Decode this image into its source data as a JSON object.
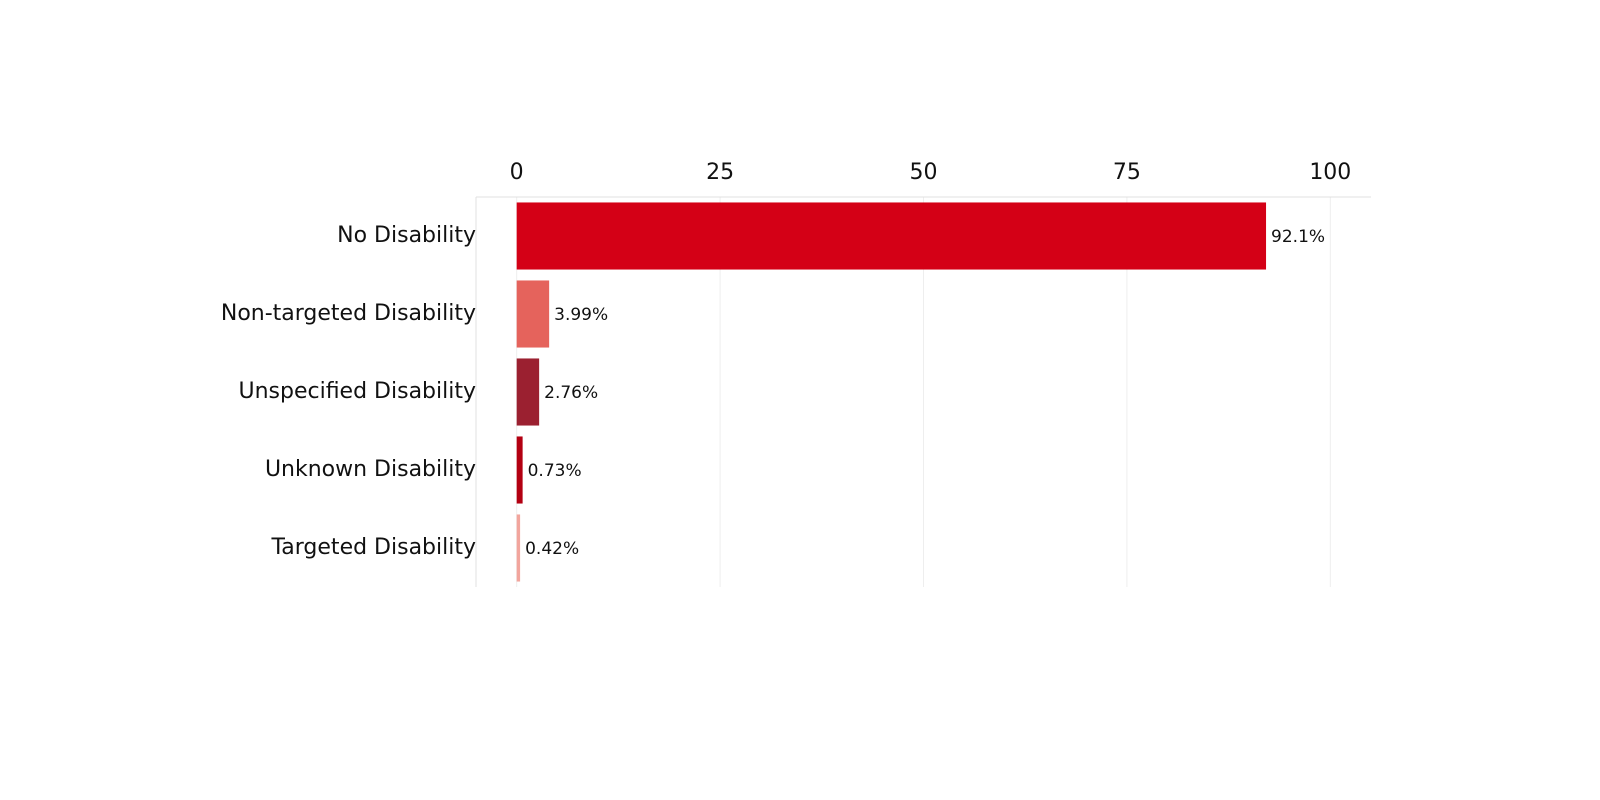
{
  "chart_data": {
    "type": "bar",
    "orientation": "horizontal",
    "categories": [
      "No Disability",
      "Non-targeted Disability",
      "Unspecified Disability",
      "Unknown Disability",
      "Targeted Disability"
    ],
    "values": [
      92.1,
      3.99,
      2.76,
      0.73,
      0.42
    ],
    "value_labels": [
      "92.1%",
      "3.99%",
      "2.76%",
      "0.73%",
      "0.42%"
    ],
    "colors": [
      "#d40016",
      "#e5635c",
      "#9b2030",
      "#b30012",
      "#f2a59d"
    ],
    "xlim": [
      -5,
      105
    ],
    "xticks": [
      0,
      25,
      50,
      75,
      100
    ],
    "grid": true
  }
}
